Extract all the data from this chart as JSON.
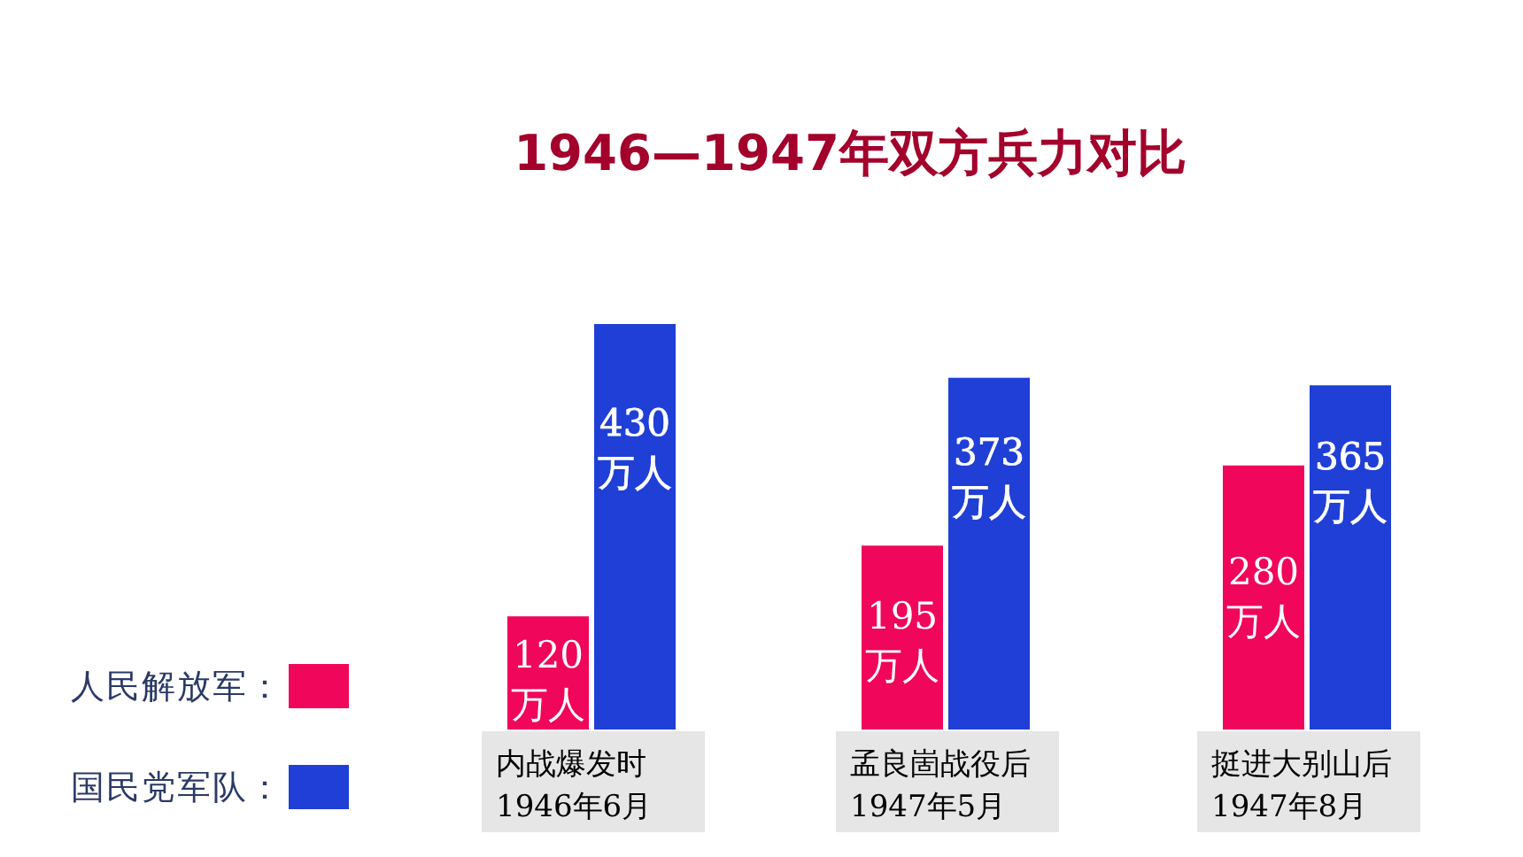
{
  "chart_data": {
    "type": "bar",
    "title": "1946—1947年双方兵力对比",
    "categories": [
      "内战爆发时\n1946年6月",
      "孟良崮战役后\n1947年5月",
      "挺进大别山后\n1947年8月"
    ],
    "series": [
      {
        "name": "人民解放军：",
        "color": "#f0065a",
        "values": [
          120,
          195,
          280
        ],
        "value_labels": [
          "120\n万人",
          "195\n万人",
          "280\n万人"
        ]
      },
      {
        "name": "国民党军队：",
        "color": "#1f3fd6",
        "values": [
          430,
          373,
          365
        ],
        "value_labels": [
          "430\n万人",
          "373\n万人",
          "365\n万人"
        ]
      }
    ],
    "legend": "left"
  }
}
